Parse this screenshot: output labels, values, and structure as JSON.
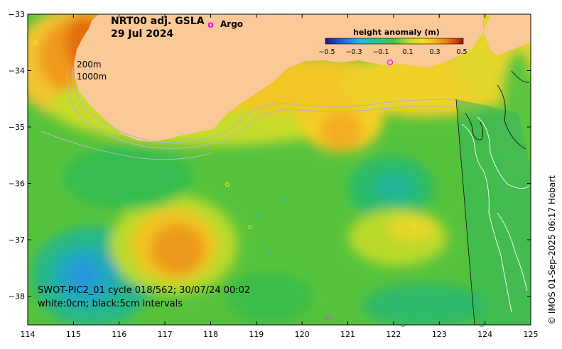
{
  "map": {
    "title_line1": "NRT00 adj. GSLA",
    "title_line2": "29 Jul 2024",
    "legend_argo_symbol": "o",
    "legend_argo_label": "Argo",
    "colorbar_title": "height anomaly (m)",
    "colorbar_ticks": [
      "−0.5",
      "−0.3",
      "−0.1",
      "0.1",
      "0.3",
      "0.5"
    ],
    "colorbar_colors": [
      "#1a1a8c",
      "#1f5fd6",
      "#24b6e6",
      "#2bbf8a",
      "#49c24a",
      "#b6db2a",
      "#f2e21c",
      "#f7b21a",
      "#ef7a12",
      "#d9460c",
      "#8c1c0c"
    ],
    "depth_label_1": "200m",
    "depth_label_2": "1000m",
    "swot_line1": "SWOT-PIC2_01 cycle 018/562; 30/07/24 00:02",
    "swot_line2": "white:0cm; black:5cm intervals",
    "credit": "© IMOS 01-Sep-2025 06:17 Hobart",
    "x_ticks": [
      "114",
      "115",
      "116",
      "117",
      "118",
      "119",
      "120",
      "121",
      "122",
      "123",
      "124",
      "125"
    ],
    "y_ticks": [
      "−33",
      "−34",
      "−35",
      "−36",
      "−37",
      "−38"
    ],
    "colors": {
      "land": "#fbc898",
      "background": "#6fd03a",
      "argo_marker": "#ff00ff"
    }
  }
}
